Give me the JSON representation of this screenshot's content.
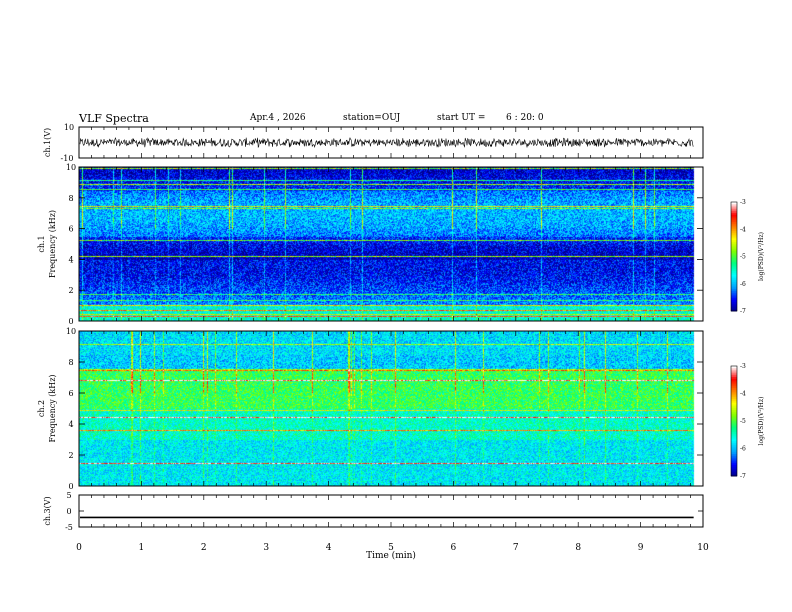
{
  "header": {
    "title": "VLF Spectra",
    "date": "Apr.4 , 2026",
    "station": "station=OUJ",
    "start_label": "start UT =",
    "start_time": "6 : 20: 0"
  },
  "chart_data": [
    {
      "type": "line",
      "name": "ch1-waveform",
      "ylabel": "ch.1(V)",
      "ylim": [
        -10,
        10
      ],
      "yticks": [
        "10",
        "-10"
      ],
      "xlim": [
        0,
        10
      ],
      "data_end_min": 9.85,
      "description_values": {
        "center": 0,
        "amplitude_approx": 2.5
      }
    },
    {
      "type": "heatmap",
      "name": "ch1-spectrogram",
      "panel_label": "ch.1",
      "ylabel": "Frequency (kHz)",
      "ylim": [
        0,
        10
      ],
      "yticks": [
        "0",
        "2",
        "4",
        "6",
        "8",
        "10"
      ],
      "xlim": [
        0,
        10
      ],
      "data_end_min": 9.85,
      "colorbar": {
        "label": "log(PSD)(V²/Hz)",
        "range": [
          -7,
          -3
        ],
        "ticks": [
          "-3",
          "-4",
          "-5",
          "-6",
          "-7"
        ]
      }
    },
    {
      "type": "heatmap",
      "name": "ch2-spectrogram",
      "panel_label": "ch.2",
      "ylabel": "Frequency (kHz)",
      "ylim": [
        0,
        10
      ],
      "yticks": [
        "0",
        "2",
        "4",
        "6",
        "8",
        "10"
      ],
      "xlim": [
        0,
        10
      ],
      "data_end_min": 9.85,
      "colorbar": {
        "label": "log(PSD)(V²/Hz)",
        "range": [
          -7,
          -3
        ],
        "ticks": [
          "-3",
          "-4",
          "-5",
          "-6",
          "-7"
        ]
      }
    },
    {
      "type": "line",
      "name": "ch3-waveform",
      "ylabel": "ch.3(V)",
      "ylim": [
        -5,
        5
      ],
      "yticks": [
        "5",
        "0",
        "-5"
      ],
      "xlim": [
        0,
        10
      ],
      "value": -2,
      "data_end_min": 9.85
    }
  ],
  "xaxis": {
    "label": "Time (min)",
    "ticks": [
      "0",
      "1",
      "2",
      "3",
      "4",
      "5",
      "6",
      "7",
      "8",
      "9",
      "10"
    ]
  },
  "colors": {
    "cmap": [
      "#000080",
      "#0000ff",
      "#00a0ff",
      "#00ffff",
      "#00ff80",
      "#80ff00",
      "#ffff00",
      "#ff8000",
      "#ff0000",
      "#ffffff"
    ]
  }
}
